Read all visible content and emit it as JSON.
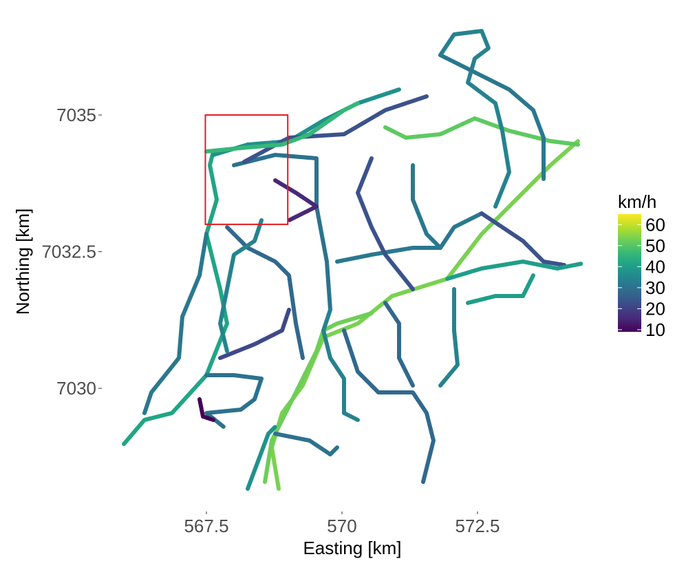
{
  "chart_data": {
    "type": "map",
    "xlabel": "Easting [km]",
    "ylabel": "Northing [km]",
    "xlim": [
      565.85,
      574.48
    ],
    "ylim": [
      7028.1,
      7036.6
    ],
    "xticks": [
      567.5,
      570,
      572.5
    ],
    "yticks": [
      7030,
      7032.5,
      7035
    ],
    "highlight_box": {
      "xlim": [
        567.48,
        569.0
      ],
      "ylim": [
        7033.0,
        7035.0
      ],
      "color": "#e41a1c"
    },
    "legend": {
      "title": "km/h",
      "lim": [
        9,
        65
      ],
      "ticks": [
        10,
        20,
        30,
        40,
        50,
        60
      ],
      "colors": [
        "#440154",
        "#482878",
        "#3e4989",
        "#31688e",
        "#26828e",
        "#1f9e89",
        "#35b779",
        "#6ece58",
        "#b5de2b",
        "#fde725"
      ]
    }
  }
}
